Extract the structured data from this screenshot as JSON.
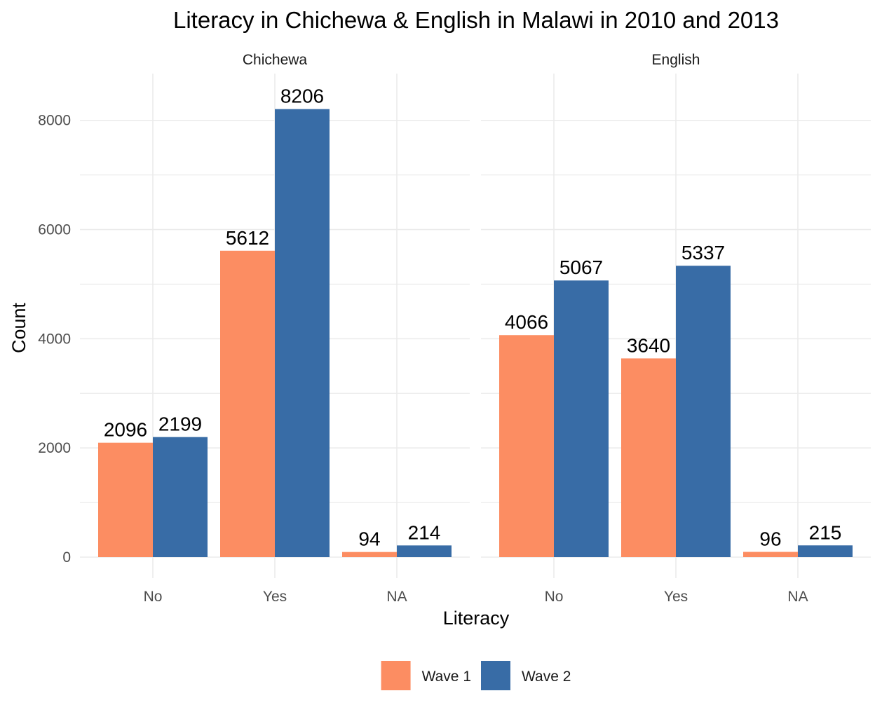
{
  "chart_data": {
    "type": "bar",
    "title": "Literacy in Chichewa & English in Malawi in 2010 and 2013",
    "xlabel": "Literacy",
    "ylabel": "Count",
    "ylim": [
      0,
      8600
    ],
    "yticks": [
      "0",
      "2000",
      "4000",
      "6000",
      "8000"
    ],
    "grid": true,
    "legend_position": "bottom",
    "categories": [
      "No",
      "Yes",
      "NA"
    ],
    "facets": [
      {
        "name": "Chichewa",
        "series": [
          {
            "name": "Wave 1",
            "color": "#FC8D62",
            "values": [
              2096,
              5612,
              94
            ]
          },
          {
            "name": "Wave 2",
            "color": "#386CA6",
            "values": [
              2199,
              8206,
              214
            ]
          }
        ]
      },
      {
        "name": "English",
        "series": [
          {
            "name": "Wave 1",
            "color": "#FC8D62",
            "values": [
              4066,
              3640,
              96
            ]
          },
          {
            "name": "Wave 2",
            "color": "#386CA6",
            "values": [
              5067,
              5337,
              215
            ]
          }
        ]
      }
    ],
    "legend": [
      {
        "name": "Wave 1",
        "color": "#FC8D62"
      },
      {
        "name": "Wave 2",
        "color": "#386CA6"
      }
    ]
  }
}
